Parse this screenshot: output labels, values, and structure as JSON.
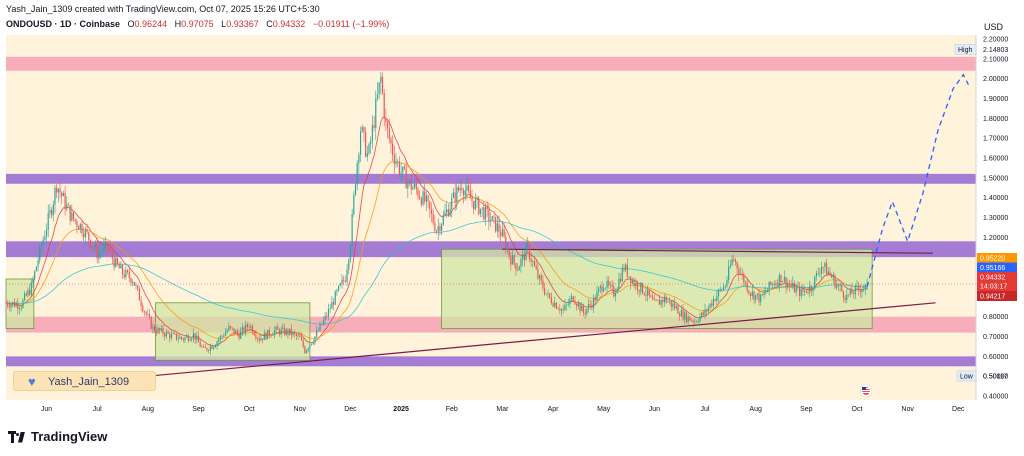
{
  "header": {
    "title": "Yash_Jain_1309 created with TradingView.com, Oct 07, 2025 15:26 UTC+5:30"
  },
  "ticker": {
    "symbol": "ONDOUSD · 1D · Coinbase",
    "open_label": "O",
    "open": "0.96244",
    "high_label": "H",
    "high": "0.97075",
    "low_label": "L",
    "low": "0.93367",
    "close_label": "C",
    "close": "0.94332",
    "change": "−0.01911 (−1.99%)"
  },
  "currency": "USD",
  "watermark": {
    "text": "Yash_Jain_1309"
  },
  "footer": {
    "brand": "TradingView"
  },
  "colors": {
    "background": "#fff3dc",
    "red_zone": "#f6a0b4",
    "purple_band": "#9b6fd1",
    "green_box": "#d2e6a6",
    "bull": "#26a69a",
    "bear": "#ef5350",
    "projection": "#2962ff",
    "trendline": "#7b1a4a"
  },
  "chart_data": {
    "type": "candlestick",
    "title": "ONDOUSD · 1D · Coinbase",
    "ylim": [
      0.38,
      2.22
    ],
    "y_ticks": [
      "2.20000",
      "2.10000",
      "2.00000",
      "1.90000",
      "1.80000",
      "1.70000",
      "1.60000",
      "1.50000",
      "1.40000",
      "1.30000",
      "1.20000",
      "1.10000",
      "1.00000",
      "0.90000",
      "0.80000",
      "0.70000",
      "0.60000",
      "0.50000",
      "0.40000"
    ],
    "x_ticks": [
      "Jun",
      "Jul",
      "Aug",
      "Sep",
      "Oct",
      "Nov",
      "Dec",
      "2025",
      "Feb",
      "Mar",
      "Apr",
      "May",
      "Jun",
      "Jul",
      "Aug",
      "Sep",
      "Oct",
      "Nov",
      "Dec"
    ],
    "x_ticks_month_index": [
      0,
      1,
      2,
      3,
      4,
      5,
      6,
      7,
      8,
      9,
      10,
      11,
      12,
      13,
      14,
      15,
      16,
      17,
      18
    ],
    "x_range_months": [
      -0.8,
      18.35
    ],
    "price_path": [
      [
        -0.8,
        0.87
      ],
      [
        -0.5,
        0.86
      ],
      [
        -0.3,
        0.95
      ],
      [
        -0.1,
        1.16
      ],
      [
        0.1,
        1.35
      ],
      [
        0.2,
        1.47
      ],
      [
        0.35,
        1.38
      ],
      [
        0.5,
        1.3
      ],
      [
        0.7,
        1.25
      ],
      [
        0.9,
        1.17
      ],
      [
        1.0,
        1.12
      ],
      [
        1.2,
        1.15
      ],
      [
        1.35,
        1.07
      ],
      [
        1.5,
        1.02
      ],
      [
        1.7,
        0.99
      ],
      [
        1.9,
        0.85
      ],
      [
        2.1,
        0.74
      ],
      [
        2.3,
        0.72
      ],
      [
        2.5,
        0.7
      ],
      [
        2.7,
        0.69
      ],
      [
        2.9,
        0.71
      ],
      [
        3.1,
        0.63
      ],
      [
        3.3,
        0.66
      ],
      [
        3.6,
        0.74
      ],
      [
        3.8,
        0.71
      ],
      [
        4.0,
        0.76
      ],
      [
        4.2,
        0.69
      ],
      [
        4.5,
        0.73
      ],
      [
        4.8,
        0.72
      ],
      [
        5.0,
        0.69
      ],
      [
        5.1,
        0.63
      ],
      [
        5.3,
        0.7
      ],
      [
        5.5,
        0.79
      ],
      [
        5.7,
        0.9
      ],
      [
        5.9,
        1.0
      ],
      [
        6.0,
        1.18
      ],
      [
        6.1,
        1.5
      ],
      [
        6.2,
        1.75
      ],
      [
        6.35,
        1.6
      ],
      [
        6.5,
        1.85
      ],
      [
        6.6,
        2.0
      ],
      [
        6.7,
        1.76
      ],
      [
        6.85,
        1.62
      ],
      [
        7.0,
        1.53
      ],
      [
        7.15,
        1.47
      ],
      [
        7.3,
        1.44
      ],
      [
        7.5,
        1.37
      ],
      [
        7.7,
        1.24
      ],
      [
        7.9,
        1.33
      ],
      [
        8.0,
        1.38
      ],
      [
        8.2,
        1.47
      ],
      [
        8.35,
        1.4
      ],
      [
        8.5,
        1.36
      ],
      [
        8.7,
        1.31
      ],
      [
        8.9,
        1.25
      ],
      [
        9.0,
        1.21
      ],
      [
        9.15,
        1.1
      ],
      [
        9.3,
        1.05
      ],
      [
        9.5,
        1.14
      ],
      [
        9.7,
        1.0
      ],
      [
        9.9,
        0.9
      ],
      [
        10.2,
        0.83
      ],
      [
        10.4,
        0.9
      ],
      [
        10.6,
        0.82
      ],
      [
        10.8,
        0.88
      ],
      [
        11.0,
        0.97
      ],
      [
        11.2,
        0.92
      ],
      [
        11.4,
        1.05
      ],
      [
        11.6,
        0.97
      ],
      [
        11.8,
        0.93
      ],
      [
        12.0,
        0.86
      ],
      [
        12.2,
        0.89
      ],
      [
        12.4,
        0.85
      ],
      [
        12.6,
        0.8
      ],
      [
        12.8,
        0.78
      ],
      [
        13.0,
        0.82
      ],
      [
        13.2,
        0.9
      ],
      [
        13.4,
        0.96
      ],
      [
        13.55,
        1.1
      ],
      [
        13.7,
        1.02
      ],
      [
        13.9,
        0.92
      ],
      [
        14.1,
        0.89
      ],
      [
        14.3,
        0.96
      ],
      [
        14.5,
        1.0
      ],
      [
        14.7,
        0.95
      ],
      [
        14.9,
        0.92
      ],
      [
        15.1,
        0.95
      ],
      [
        15.3,
        1.06
      ],
      [
        15.45,
        1.02
      ],
      [
        15.6,
        0.96
      ],
      [
        15.8,
        0.9
      ],
      [
        15.9,
        0.92
      ],
      [
        16.1,
        0.95
      ],
      [
        16.2,
        0.94
      ]
    ],
    "projection_path": [
      [
        16.2,
        0.95
      ],
      [
        16.5,
        1.24
      ],
      [
        16.7,
        1.38
      ],
      [
        17.0,
        1.18
      ],
      [
        17.3,
        1.42
      ],
      [
        17.6,
        1.74
      ],
      [
        17.9,
        1.95
      ],
      [
        18.1,
        2.02
      ],
      [
        18.2,
        1.97
      ]
    ],
    "red_zones": [
      [
        2.04,
        2.11
      ],
      [
        0.72,
        0.8
      ]
    ],
    "purple_bands": [
      [
        1.47,
        1.52
      ],
      [
        1.1,
        1.18
      ],
      [
        0.55,
        0.6
      ]
    ],
    "green_boxes": [
      {
        "start": -0.8,
        "end": -0.25,
        "top": 0.99,
        "bottom": 0.74
      },
      {
        "start": 2.15,
        "end": 5.2,
        "top": 0.87,
        "bottom": 0.58
      },
      {
        "start": 7.8,
        "end": 16.3,
        "top": 1.14,
        "bottom": 0.74
      }
    ],
    "trendlines": [
      {
        "x1": 2.0,
        "y1": 0.5,
        "x2": 17.55,
        "y2": 0.87
      },
      {
        "x1": 9.0,
        "y1": 1.14,
        "x2": 17.5,
        "y2": 1.12
      }
    ],
    "price_tags": [
      {
        "value": "0.95220",
        "price": 0.9522,
        "color": "#ff9800"
      },
      {
        "value": "0.95166",
        "price": 0.95166,
        "color": "#2962ff"
      },
      {
        "value": "0.94332",
        "price": 0.94332,
        "color": "#e53935"
      },
      {
        "value": "14:03:17",
        "price": 0.905,
        "color": "#e53935"
      },
      {
        "value": "0.94217",
        "price": 0.871,
        "color": "#c62828"
      }
    ],
    "high": {
      "label": "High",
      "value": "2.14803",
      "price": 2.14803
    },
    "low": {
      "label": "Low",
      "value": "0.50117",
      "price": 0.50117
    }
  }
}
